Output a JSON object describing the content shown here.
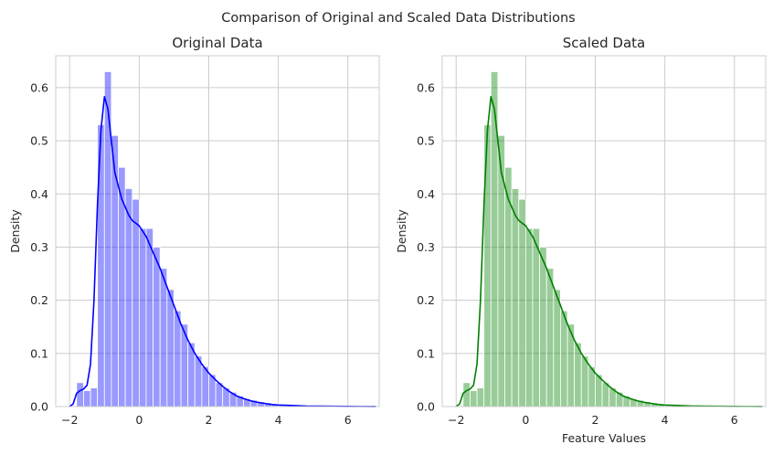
{
  "figure": {
    "suptitle": "Comparison of Original and Scaled Data Distributions"
  },
  "chart_data": [
    {
      "type": "bar",
      "subtype": "histogram-with-kde",
      "title": "Original Data",
      "xlabel": "",
      "ylabel": "Density",
      "xlim": [
        -2.4,
        6.9
      ],
      "ylim": [
        0,
        0.66
      ],
      "xticks": [
        -2,
        0,
        2,
        4,
        6
      ],
      "yticks": [
        0.0,
        0.1,
        0.2,
        0.3,
        0.4,
        0.5,
        0.6
      ],
      "grid": true,
      "bar_color": "#0000ff",
      "bar_alpha": 0.4,
      "line_color": "#0000ff",
      "bin_edges": [
        -1.8,
        -1.6,
        -1.4,
        -1.2,
        -1.0,
        -0.8,
        -0.6,
        -0.4,
        -0.2,
        0.0,
        0.2,
        0.4,
        0.6,
        0.8,
        1.0,
        1.2,
        1.4,
        1.6,
        1.8,
        2.0,
        2.2,
        2.4,
        2.6,
        2.8,
        3.0,
        3.2,
        3.4,
        3.6,
        3.8,
        4.0,
        4.2,
        4.4,
        4.6,
        4.8,
        5.0,
        5.2,
        5.4,
        5.6,
        5.8,
        6.0,
        6.2,
        6.4,
        6.6
      ],
      "values": [
        0.045,
        0.03,
        0.035,
        0.53,
        0.63,
        0.51,
        0.45,
        0.41,
        0.39,
        0.335,
        0.335,
        0.3,
        0.26,
        0.22,
        0.18,
        0.155,
        0.12,
        0.095,
        0.075,
        0.06,
        0.045,
        0.035,
        0.027,
        0.02,
        0.015,
        0.012,
        0.009,
        0.007,
        0.005,
        0.004,
        0.003,
        0.002,
        0.002,
        0.0015,
        0.001,
        0.001,
        0.001,
        0.001,
        0.001,
        0.0008,
        0.0007,
        0.0006
      ],
      "kde": {
        "x": [
          -2.0,
          -1.9,
          -1.8,
          -1.7,
          -1.6,
          -1.5,
          -1.4,
          -1.3,
          -1.2,
          -1.1,
          -1.0,
          -0.9,
          -0.8,
          -0.7,
          -0.6,
          -0.5,
          -0.4,
          -0.3,
          -0.2,
          -0.1,
          0.0,
          0.2,
          0.4,
          0.6,
          0.8,
          1.0,
          1.2,
          1.4,
          1.6,
          1.8,
          2.0,
          2.2,
          2.4,
          2.6,
          2.8,
          3.0,
          3.2,
          3.4,
          3.6,
          3.8,
          4.0,
          4.4,
          4.8,
          5.2,
          5.6,
          6.0,
          6.4,
          6.8
        ],
        "y": [
          0.0,
          0.005,
          0.025,
          0.03,
          0.033,
          0.04,
          0.08,
          0.2,
          0.38,
          0.52,
          0.583,
          0.56,
          0.5,
          0.44,
          0.415,
          0.39,
          0.375,
          0.36,
          0.35,
          0.345,
          0.34,
          0.32,
          0.29,
          0.26,
          0.225,
          0.19,
          0.155,
          0.125,
          0.1,
          0.08,
          0.063,
          0.05,
          0.038,
          0.028,
          0.02,
          0.015,
          0.011,
          0.008,
          0.006,
          0.004,
          0.003,
          0.002,
          0.001,
          0.0007,
          0.0005,
          0.0003,
          0.0002,
          0.0001
        ]
      }
    },
    {
      "type": "bar",
      "subtype": "histogram-with-kde",
      "title": "Scaled Data",
      "xlabel": "Feature Values",
      "ylabel": "Density",
      "xlim": [
        -2.4,
        6.9
      ],
      "ylim": [
        0,
        0.66
      ],
      "xticks": [
        -2,
        0,
        2,
        4,
        6
      ],
      "yticks": [
        0.0,
        0.1,
        0.2,
        0.3,
        0.4,
        0.5,
        0.6
      ],
      "grid": true,
      "bar_color": "#008000",
      "bar_alpha": 0.4,
      "line_color": "#008000",
      "bin_edges": [
        -1.8,
        -1.6,
        -1.4,
        -1.2,
        -1.0,
        -0.8,
        -0.6,
        -0.4,
        -0.2,
        0.0,
        0.2,
        0.4,
        0.6,
        0.8,
        1.0,
        1.2,
        1.4,
        1.6,
        1.8,
        2.0,
        2.2,
        2.4,
        2.6,
        2.8,
        3.0,
        3.2,
        3.4,
        3.6,
        3.8,
        4.0,
        4.2,
        4.4,
        4.6,
        4.8,
        5.0,
        5.2,
        5.4,
        5.6,
        5.8,
        6.0,
        6.2,
        6.4,
        6.6
      ],
      "values": [
        0.045,
        0.03,
        0.035,
        0.53,
        0.63,
        0.51,
        0.45,
        0.41,
        0.39,
        0.335,
        0.335,
        0.3,
        0.26,
        0.22,
        0.18,
        0.155,
        0.12,
        0.095,
        0.075,
        0.06,
        0.045,
        0.035,
        0.027,
        0.02,
        0.015,
        0.012,
        0.009,
        0.007,
        0.005,
        0.004,
        0.003,
        0.002,
        0.002,
        0.0015,
        0.001,
        0.001,
        0.001,
        0.001,
        0.001,
        0.0008,
        0.0007,
        0.0006
      ],
      "kde": {
        "x": [
          -2.0,
          -1.9,
          -1.8,
          -1.7,
          -1.6,
          -1.5,
          -1.4,
          -1.3,
          -1.2,
          -1.1,
          -1.0,
          -0.9,
          -0.8,
          -0.7,
          -0.6,
          -0.5,
          -0.4,
          -0.3,
          -0.2,
          -0.1,
          0.0,
          0.2,
          0.4,
          0.6,
          0.8,
          1.0,
          1.2,
          1.4,
          1.6,
          1.8,
          2.0,
          2.2,
          2.4,
          2.6,
          2.8,
          3.0,
          3.2,
          3.4,
          3.6,
          3.8,
          4.0,
          4.4,
          4.8,
          5.2,
          5.6,
          6.0,
          6.4,
          6.8
        ],
        "y": [
          0.0,
          0.005,
          0.025,
          0.03,
          0.033,
          0.04,
          0.08,
          0.2,
          0.38,
          0.52,
          0.583,
          0.56,
          0.5,
          0.44,
          0.415,
          0.39,
          0.375,
          0.36,
          0.35,
          0.345,
          0.34,
          0.32,
          0.29,
          0.26,
          0.225,
          0.19,
          0.155,
          0.125,
          0.1,
          0.08,
          0.063,
          0.05,
          0.038,
          0.028,
          0.02,
          0.015,
          0.011,
          0.008,
          0.006,
          0.004,
          0.003,
          0.002,
          0.001,
          0.0007,
          0.0005,
          0.0003,
          0.0002,
          0.0001
        ]
      }
    }
  ]
}
